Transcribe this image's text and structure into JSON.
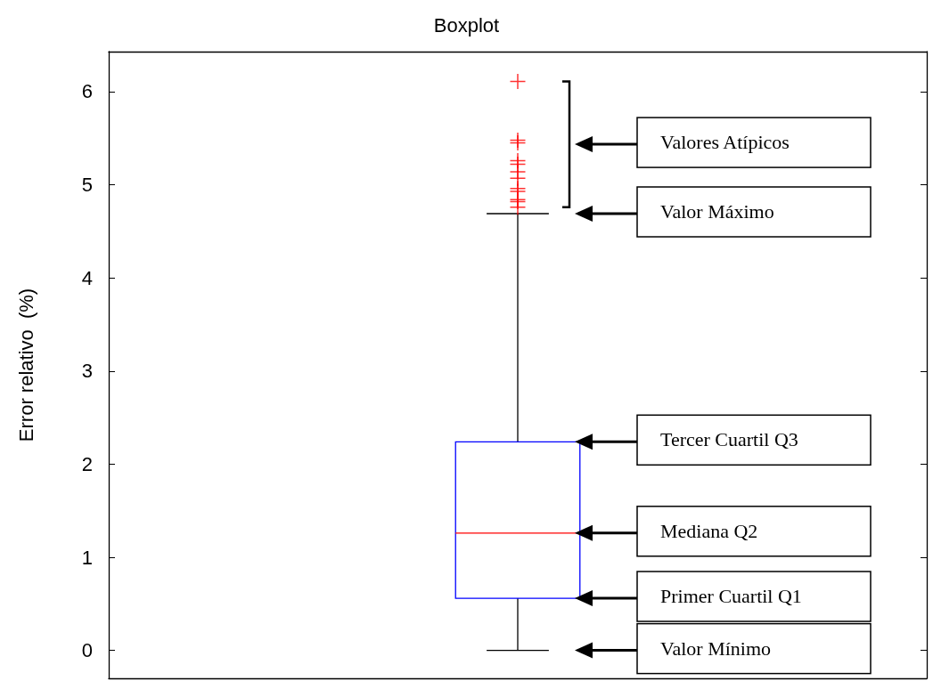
{
  "chart_data": {
    "type": "box",
    "title": "Boxplot",
    "ylabel": "Error relativo  (%)",
    "categories": [
      null
    ],
    "series": [
      {
        "color": "#0000ff",
        "boxes": [
          {
            "low": 0,
            "q1": 0.56,
            "median": 1.26,
            "q3": 2.24,
            "high": 4.69,
            "outliers": [
              6.11,
              5.48,
              5.45,
              5.26,
              5.22,
              5.14,
              5.07,
              4.96,
              4.93,
              4.84,
              4.82,
              4.76
            ]
          }
        ]
      }
    ],
    "marker": "cross",
    "ylim": [
      -0.3,
      6.43
    ],
    "yticks": [
      0,
      1,
      2,
      3,
      4,
      5,
      6
    ],
    "grid": false,
    "annotations": [
      "Valores Atípicos",
      "Valor Máximo",
      "Tercer Cuartil Q3",
      "Mediana Q2",
      "Primer Cuartil Q1",
      "Valor Mínimo"
    ]
  }
}
